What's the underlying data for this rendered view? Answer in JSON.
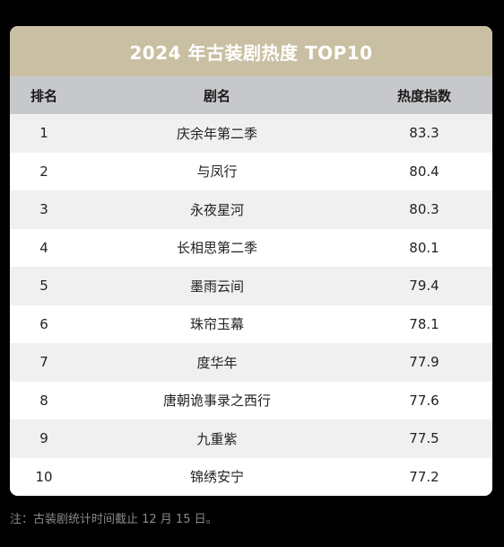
{
  "chart_data": {
    "type": "table",
    "title": "2024 年古装剧热度 TOP10",
    "columns": [
      "排名",
      "剧名",
      "热度指数"
    ],
    "rows": [
      {
        "rank": "1",
        "name": "庆余年第二季",
        "score": "83.3"
      },
      {
        "rank": "2",
        "name": "与凤行",
        "score": "80.4"
      },
      {
        "rank": "3",
        "name": "永夜星河",
        "score": "80.3"
      },
      {
        "rank": "4",
        "name": "长相思第二季",
        "score": "80.1"
      },
      {
        "rank": "5",
        "name": "墨雨云间",
        "score": "79.4"
      },
      {
        "rank": "6",
        "name": "珠帘玉幕",
        "score": "78.1"
      },
      {
        "rank": "7",
        "name": "度华年",
        "score": "77.9"
      },
      {
        "rank": "8",
        "name": "唐朝诡事录之西行",
        "score": "77.6"
      },
      {
        "rank": "9",
        "name": "九重紫",
        "score": "77.5"
      },
      {
        "rank": "10",
        "name": "锦绣安宁",
        "score": "77.2"
      }
    ],
    "footnote": "注：古装剧统计时间截止 12 月 15 日。"
  },
  "colors": {
    "title_bar": "#c9bfa2",
    "header_row": "#c7c8cb",
    "stripe": "#f0f0f0",
    "background": "#000000"
  }
}
